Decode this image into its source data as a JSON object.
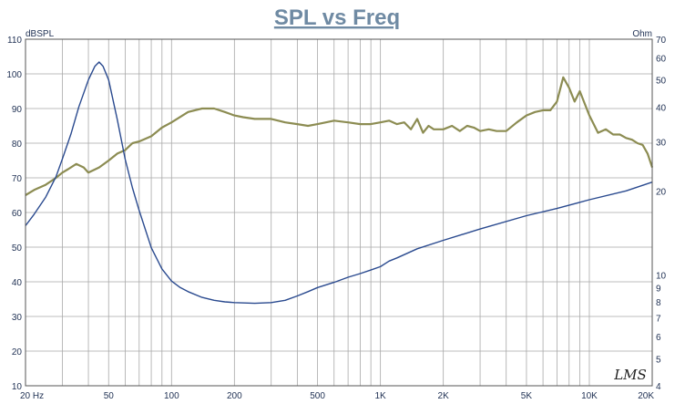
{
  "chart_data": {
    "type": "line",
    "title": "SPL vs Freq",
    "watermark": "LMS",
    "x_scale": "log",
    "xlim": [
      20,
      20000
    ],
    "x_ticks": [
      {
        "v": 20,
        "label": "20  Hz"
      },
      {
        "v": 50,
        "label": "50"
      },
      {
        "v": 100,
        "label": "100"
      },
      {
        "v": 200,
        "label": "200"
      },
      {
        "v": 500,
        "label": "500"
      },
      {
        "v": 1000,
        "label": "1K"
      },
      {
        "v": 2000,
        "label": "2K"
      },
      {
        "v": 5000,
        "label": "5K"
      },
      {
        "v": 10000,
        "label": "10K"
      },
      {
        "v": 20000,
        "label": "20K"
      }
    ],
    "y_left": {
      "label": "dBSPL",
      "range": [
        10,
        110
      ],
      "ticks": [
        10,
        20,
        30,
        40,
        50,
        60,
        70,
        80,
        90,
        100,
        110
      ]
    },
    "y_right": {
      "label": "Ohm",
      "scale": "log",
      "range": [
        4,
        70
      ],
      "ticks": [
        4,
        5,
        6,
        7,
        8,
        9,
        10,
        20,
        30,
        40,
        50,
        60,
        70
      ]
    },
    "grid": true,
    "colors": {
      "spl": "#8c8c52",
      "impedance": "#2a4a8f",
      "grid": "#a8a8a8",
      "title": "#6f8aa3",
      "tick_text": "#223355"
    },
    "series": [
      {
        "key": "spl",
        "axis": "left",
        "x": [
          20,
          22,
          25,
          28,
          30,
          32,
          35,
          38,
          40,
          45,
          50,
          55,
          60,
          65,
          70,
          80,
          90,
          100,
          120,
          140,
          160,
          180,
          200,
          220,
          250,
          300,
          350,
          400,
          450,
          500,
          600,
          700,
          800,
          900,
          1000,
          1100,
          1200,
          1300,
          1400,
          1500,
          1600,
          1700,
          1800,
          2000,
          2200,
          2400,
          2600,
          2800,
          3000,
          3300,
          3600,
          4000,
          4500,
          5000,
          5500,
          6000,
          6500,
          7000,
          7500,
          8000,
          8500,
          9000,
          10000,
          11000,
          12000,
          13000,
          14000,
          15000,
          16000,
          17000,
          18000,
          19000,
          20000
        ],
        "values": [
          65,
          66.5,
          68,
          70,
          71.5,
          72.5,
          74,
          73,
          71.5,
          73,
          75,
          77,
          78,
          80,
          80.5,
          82,
          84.5,
          86,
          89,
          90,
          90,
          89,
          88,
          87.5,
          87,
          87,
          86,
          85.5,
          85,
          85.5,
          86.5,
          86,
          85.5,
          85.5,
          86,
          86.5,
          85.5,
          86,
          84,
          87,
          83,
          85,
          84,
          84,
          85,
          83.5,
          85,
          84.5,
          83.5,
          84,
          83.5,
          83.5,
          86,
          88,
          89,
          89.5,
          89.5,
          92,
          99,
          96,
          92,
          95,
          88,
          83,
          84,
          82.5,
          82.5,
          81.5,
          81,
          80,
          79.5,
          77,
          73
        ]
      },
      {
        "key": "impedance",
        "axis": "right",
        "x": [
          20,
          22,
          25,
          28,
          30,
          33,
          36,
          40,
          43,
          45,
          47,
          50,
          55,
          60,
          65,
          70,
          80,
          90,
          100,
          110,
          120,
          140,
          160,
          180,
          200,
          250,
          300,
          350,
          400,
          450,
          500,
          600,
          700,
          800,
          900,
          1000,
          1100,
          1200,
          1500,
          2000,
          3000,
          5000,
          7000,
          10000,
          15000,
          20000
        ],
        "values": [
          15,
          16.5,
          19,
          22.5,
          26,
          32,
          40,
          50,
          56,
          58,
          56,
          50,
          36,
          26,
          20.5,
          17,
          12.5,
          10.5,
          9.5,
          9,
          8.7,
          8.3,
          8.1,
          8,
          7.95,
          7.9,
          7.95,
          8.1,
          8.4,
          8.7,
          9,
          9.4,
          9.8,
          10.1,
          10.4,
          10.7,
          11.2,
          11.5,
          12.4,
          13.3,
          14.6,
          16.3,
          17.3,
          18.6,
          20,
          21.5
        ]
      }
    ]
  }
}
